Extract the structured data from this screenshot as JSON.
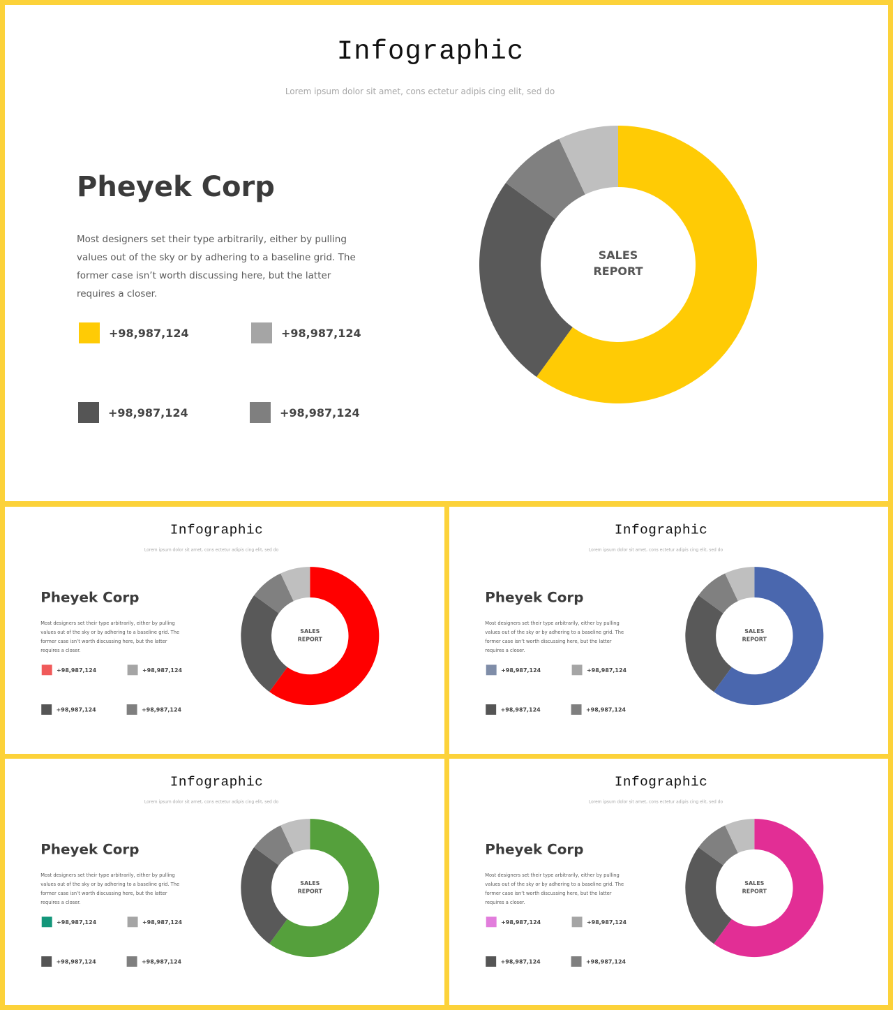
{
  "slides": [
    {
      "title": "Infographic",
      "subtitle": "Lorem ipsum  dolor sit amet, cons ectetur adipis cing elit, sed do",
      "company": "Pheyek Corp",
      "description": "Most designers set their type arbitrarily, either by pulling values out of the sky or by adhering to a baseline grid. The former case isn’t worth discussing here, but the latter requires a closer.",
      "legend": [
        {
          "label": "+98,987,124",
          "color": "#FFCB05"
        },
        {
          "label": "+98,987,124",
          "color": "#A5A5A5"
        },
        {
          "label": "+98,987,124",
          "color": "#555555"
        },
        {
          "label": "+98,987,124",
          "color": "#7F7F7F"
        }
      ],
      "center_label": [
        "SALES",
        "REPORT"
      ]
    },
    {
      "title": "Infographic",
      "subtitle": "Lorem ipsum  dolor sit amet, cons ectetur adipis cing elit, sed do",
      "company": "Pheyek Corp",
      "description": "Most designers set their type arbitrarily, either by pulling values out of the sky or by adhering to a baseline grid. The former case isn’t worth discussing here, but the latter requires a closer.",
      "legend": [
        {
          "label": "+98,987,124",
          "color": "#F05A5A"
        },
        {
          "label": "+98,987,124",
          "color": "#A5A5A5"
        },
        {
          "label": "+98,987,124",
          "color": "#555555"
        },
        {
          "label": "+98,987,124",
          "color": "#7F7F7F"
        }
      ],
      "center_label": [
        "SALES",
        "REPORT"
      ]
    },
    {
      "title": "Infographic",
      "subtitle": "Lorem ipsum  dolor sit amet, cons ectetur adipis cing elit, sed do",
      "company": "Pheyek Corp",
      "description": "Most designers set their type arbitrarily, either by pulling values out of the sky or by adhering to a baseline grid. The former case isn’t worth discussing here, but the latter requires a closer.",
      "legend": [
        {
          "label": "+98,987,124",
          "color": "#7F8DA8"
        },
        {
          "label": "+98,987,124",
          "color": "#A5A5A5"
        },
        {
          "label": "+98,987,124",
          "color": "#555555"
        },
        {
          "label": "+98,987,124",
          "color": "#7F7F7F"
        }
      ],
      "center_label": [
        "SALES",
        "REPORT"
      ]
    },
    {
      "title": "Infographic",
      "subtitle": "Lorem ipsum  dolor sit amet, cons ectetur adipis cing elit, sed do",
      "company": "Pheyek Corp",
      "description": "Most designers set their type arbitrarily, either by pulling values out of the sky or by adhering to a baseline grid. The former case isn’t worth discussing here, but the latter requires a closer.",
      "legend": [
        {
          "label": "+98,987,124",
          "color": "#13967A"
        },
        {
          "label": "+98,987,124",
          "color": "#A5A5A5"
        },
        {
          "label": "+98,987,124",
          "color": "#555555"
        },
        {
          "label": "+98,987,124",
          "color": "#7F7F7F"
        }
      ],
      "center_label": [
        "SALES",
        "REPORT"
      ]
    },
    {
      "title": "Infographic",
      "subtitle": "Lorem ipsum  dolor sit amet, cons ectetur adipis cing elit, sed do",
      "company": "Pheyek Corp",
      "description": "Most designers set their type arbitrarily, either by pulling values out of the sky or by adhering to a baseline grid. The former case isn’t worth discussing here, but the latter requires a closer.",
      "legend": [
        {
          "label": "+98,987,124",
          "color": "#E27DDC"
        },
        {
          "label": "+98,987,124",
          "color": "#A5A5A5"
        },
        {
          "label": "+98,987,124",
          "color": "#555555"
        },
        {
          "label": "+98,987,124",
          "color": "#7F7F7F"
        }
      ],
      "center_label": [
        "SALES",
        "REPORT"
      ]
    }
  ],
  "chart_data": [
    {
      "type": "pie",
      "donut": true,
      "values": [
        60,
        25,
        8,
        7
      ],
      "colors": [
        "#FFCB05",
        "#595959",
        "#808080",
        "#BFBFBF"
      ]
    },
    {
      "type": "pie",
      "donut": true,
      "values": [
        60,
        25,
        8,
        7
      ],
      "colors": [
        "#FF0000",
        "#595959",
        "#808080",
        "#BFBFBF"
      ]
    },
    {
      "type": "pie",
      "donut": true,
      "values": [
        60,
        25,
        8,
        7
      ],
      "colors": [
        "#4A67AE",
        "#595959",
        "#808080",
        "#BFBFBF"
      ]
    },
    {
      "type": "pie",
      "donut": true,
      "values": [
        60,
        25,
        8,
        7
      ],
      "colors": [
        "#55A03C",
        "#595959",
        "#808080",
        "#BFBFBF"
      ]
    },
    {
      "type": "pie",
      "donut": true,
      "values": [
        60,
        25,
        8,
        7
      ],
      "colors": [
        "#E22E95",
        "#595959",
        "#808080",
        "#BFBFBF"
      ]
    }
  ]
}
